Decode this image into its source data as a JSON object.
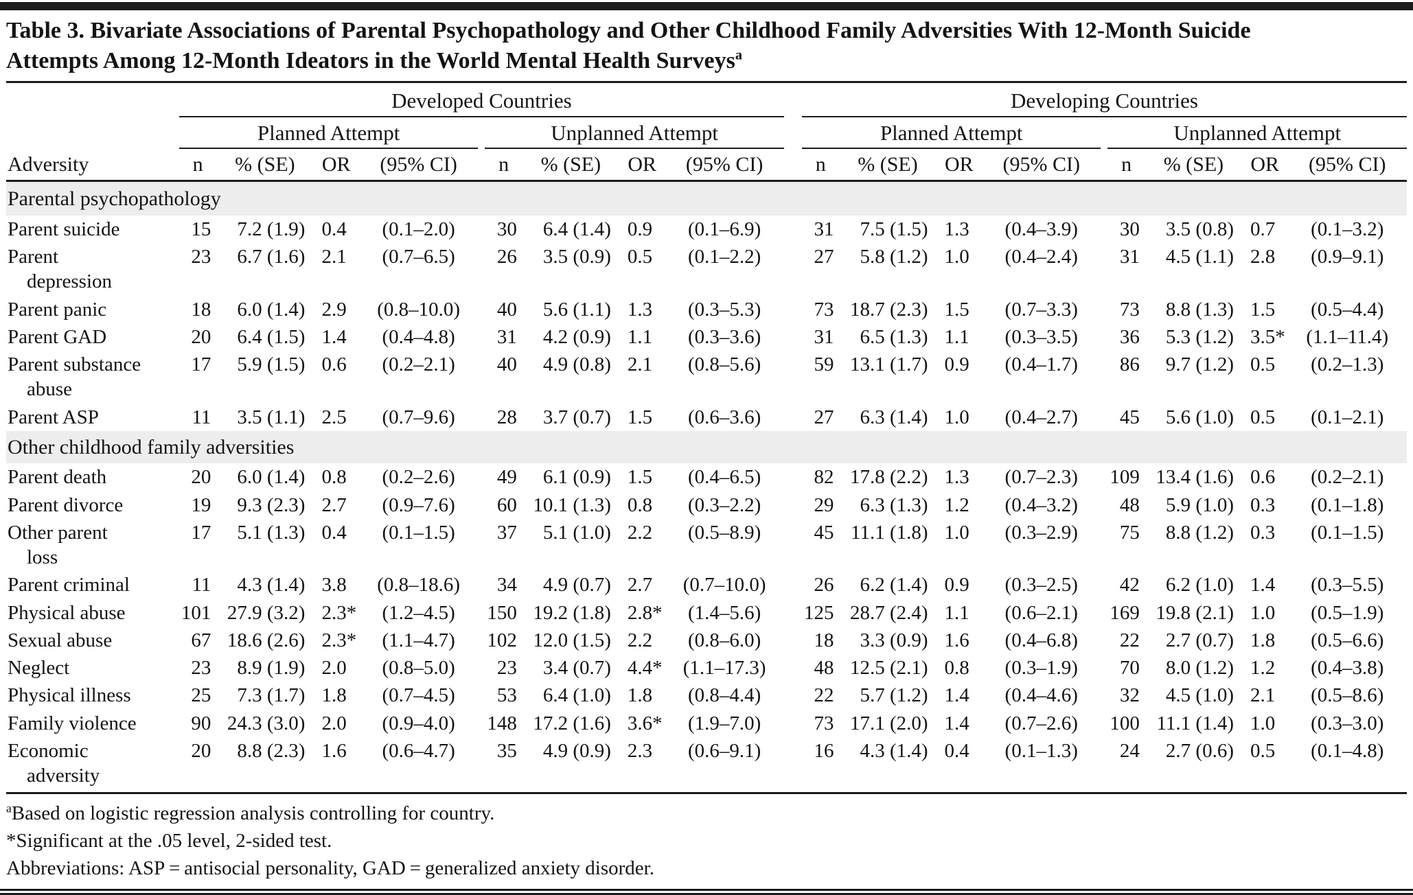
{
  "title": {
    "line1": "Table 3. Bivariate Associations of Parental Psychopathology and Other Childhood Family Adversities With 12-Month Suicide",
    "line2": "Attempts Among 12-Month Ideators in the World Mental Health Surveys",
    "footnote_marker": "a"
  },
  "header": {
    "developed": "Developed Countries",
    "developing": "Developing Countries",
    "planned": "Planned Attempt",
    "unplanned": "Unplanned Attempt"
  },
  "columns": {
    "adversity": "Adversity",
    "n": "n",
    "pct_se": "% (SE)",
    "or": "OR",
    "ci": "(95% CI)"
  },
  "sections": [
    {
      "label": "Parental psychopathology",
      "rows": [
        {
          "label_lines": [
            "Parent suicide"
          ],
          "groups": [
            [
              "15",
              "7.2 (1.9)",
              "0.4",
              "(0.1–2.0)"
            ],
            [
              "30",
              "6.4 (1.4)",
              "0.9",
              "(0.1–6.9)"
            ],
            [
              "31",
              "7.5 (1.5)",
              "1.3",
              "(0.4–3.9)"
            ],
            [
              "30",
              "3.5 (0.8)",
              "0.7",
              "(0.1–3.2)"
            ]
          ]
        },
        {
          "label_lines": [
            "Parent",
            "depression"
          ],
          "groups": [
            [
              "23",
              "6.7 (1.6)",
              "2.1",
              "(0.7–6.5)"
            ],
            [
              "26",
              "3.5 (0.9)",
              "0.5",
              "(0.1–2.2)"
            ],
            [
              "27",
              "5.8 (1.2)",
              "1.0",
              "(0.4–2.4)"
            ],
            [
              "31",
              "4.5 (1.1)",
              "2.8",
              "(0.9–9.1)"
            ]
          ]
        },
        {
          "label_lines": [
            "Parent panic"
          ],
          "groups": [
            [
              "18",
              "6.0 (1.4)",
              "2.9",
              "(0.8–10.0)"
            ],
            [
              "40",
              "5.6 (1.1)",
              "1.3",
              "(0.3–5.3)"
            ],
            [
              "73",
              "18.7 (2.3)",
              "1.5",
              "(0.7–3.3)"
            ],
            [
              "73",
              "8.8 (1.3)",
              "1.5",
              "(0.5–4.4)"
            ]
          ]
        },
        {
          "label_lines": [
            "Parent GAD"
          ],
          "groups": [
            [
              "20",
              "6.4 (1.5)",
              "1.4",
              "(0.4–4.8)"
            ],
            [
              "31",
              "4.2 (0.9)",
              "1.1",
              "(0.3–3.6)"
            ],
            [
              "31",
              "6.5 (1.3)",
              "1.1",
              "(0.3–3.5)"
            ],
            [
              "36",
              "5.3 (1.2)",
              "3.5*",
              "(1.1–11.4)"
            ]
          ]
        },
        {
          "label_lines": [
            "Parent substance",
            "abuse"
          ],
          "groups": [
            [
              "17",
              "5.9 (1.5)",
              "0.6",
              "(0.2–2.1)"
            ],
            [
              "40",
              "4.9 (0.8)",
              "2.1",
              "(0.8–5.6)"
            ],
            [
              "59",
              "13.1 (1.7)",
              "0.9",
              "(0.4–1.7)"
            ],
            [
              "86",
              "9.7 (1.2)",
              "0.5",
              "(0.2–1.3)"
            ]
          ]
        },
        {
          "label_lines": [
            "Parent ASP"
          ],
          "groups": [
            [
              "11",
              "3.5 (1.1)",
              "2.5",
              "(0.7–9.6)"
            ],
            [
              "28",
              "3.7 (0.7)",
              "1.5",
              "(0.6–3.6)"
            ],
            [
              "27",
              "6.3 (1.4)",
              "1.0",
              "(0.4–2.7)"
            ],
            [
              "45",
              "5.6 (1.0)",
              "0.5",
              "(0.1–2.1)"
            ]
          ]
        }
      ]
    },
    {
      "label": "Other childhood family adversities",
      "rows": [
        {
          "label_lines": [
            "Parent death"
          ],
          "groups": [
            [
              "20",
              "6.0 (1.4)",
              "0.8",
              "(0.2–2.6)"
            ],
            [
              "49",
              "6.1 (0.9)",
              "1.5",
              "(0.4–6.5)"
            ],
            [
              "82",
              "17.8 (2.2)",
              "1.3",
              "(0.7–2.3)"
            ],
            [
              "109",
              "13.4 (1.6)",
              "0.6",
              "(0.2–2.1)"
            ]
          ]
        },
        {
          "label_lines": [
            "Parent divorce"
          ],
          "groups": [
            [
              "19",
              "9.3 (2.3)",
              "2.7",
              "(0.9–7.6)"
            ],
            [
              "60",
              "10.1 (1.3)",
              "0.8",
              "(0.3–2.2)"
            ],
            [
              "29",
              "6.3 (1.3)",
              "1.2",
              "(0.4–3.2)"
            ],
            [
              "48",
              "5.9 (1.0)",
              "0.3",
              "(0.1–1.8)"
            ]
          ]
        },
        {
          "label_lines": [
            "Other parent",
            "loss"
          ],
          "groups": [
            [
              "17",
              "5.1 (1.3)",
              "0.4",
              "(0.1–1.5)"
            ],
            [
              "37",
              "5.1 (1.0)",
              "2.2",
              "(0.5–8.9)"
            ],
            [
              "45",
              "11.1 (1.8)",
              "1.0",
              "(0.3–2.9)"
            ],
            [
              "75",
              "8.8 (1.2)",
              "0.3",
              "(0.1–1.5)"
            ]
          ]
        },
        {
          "label_lines": [
            "Parent criminal"
          ],
          "groups": [
            [
              "11",
              "4.3 (1.4)",
              "3.8",
              "(0.8–18.6)"
            ],
            [
              "34",
              "4.9 (0.7)",
              "2.7",
              "(0.7–10.0)"
            ],
            [
              "26",
              "6.2 (1.4)",
              "0.9",
              "(0.3–2.5)"
            ],
            [
              "42",
              "6.2 (1.0)",
              "1.4",
              "(0.3–5.5)"
            ]
          ]
        },
        {
          "label_lines": [
            "Physical abuse"
          ],
          "groups": [
            [
              "101",
              "27.9 (3.2)",
              "2.3*",
              "(1.2–4.5)"
            ],
            [
              "150",
              "19.2 (1.8)",
              "2.8*",
              "(1.4–5.6)"
            ],
            [
              "125",
              "28.7 (2.4)",
              "1.1",
              "(0.6–2.1)"
            ],
            [
              "169",
              "19.8 (2.1)",
              "1.0",
              "(0.5–1.9)"
            ]
          ]
        },
        {
          "label_lines": [
            "Sexual abuse"
          ],
          "groups": [
            [
              "67",
              "18.6 (2.6)",
              "2.3*",
              "(1.1–4.7)"
            ],
            [
              "102",
              "12.0 (1.5)",
              "2.2",
              "(0.8–6.0)"
            ],
            [
              "18",
              "3.3 (0.9)",
              "1.6",
              "(0.4–6.8)"
            ],
            [
              "22",
              "2.7 (0.7)",
              "1.8",
              "(0.5–6.6)"
            ]
          ]
        },
        {
          "label_lines": [
            "Neglect"
          ],
          "groups": [
            [
              "23",
              "8.9 (1.9)",
              "2.0",
              "(0.8–5.0)"
            ],
            [
              "23",
              "3.4 (0.7)",
              "4.4*",
              "(1.1–17.3)"
            ],
            [
              "48",
              "12.5 (2.1)",
              "0.8",
              "(0.3–1.9)"
            ],
            [
              "70",
              "8.0 (1.2)",
              "1.2",
              "(0.4–3.8)"
            ]
          ]
        },
        {
          "label_lines": [
            "Physical illness"
          ],
          "groups": [
            [
              "25",
              "7.3 (1.7)",
              "1.8",
              "(0.7–4.5)"
            ],
            [
              "53",
              "6.4 (1.0)",
              "1.8",
              "(0.8–4.4)"
            ],
            [
              "22",
              "5.7 (1.2)",
              "1.4",
              "(0.4–4.6)"
            ],
            [
              "32",
              "4.5 (1.0)",
              "2.1",
              "(0.5–8.6)"
            ]
          ]
        },
        {
          "label_lines": [
            "Family violence"
          ],
          "groups": [
            [
              "90",
              "24.3 (3.0)",
              "2.0",
              "(0.9–4.0)"
            ],
            [
              "148",
              "17.2 (1.6)",
              "3.6*",
              "(1.9–7.0)"
            ],
            [
              "73",
              "17.1 (2.0)",
              "1.4",
              "(0.7–2.6)"
            ],
            [
              "100",
              "11.1 (1.4)",
              "1.0",
              "(0.3–3.0)"
            ]
          ]
        },
        {
          "label_lines": [
            "Economic",
            "adversity"
          ],
          "groups": [
            [
              "20",
              "8.8 (2.3)",
              "1.6",
              "(0.6–4.7)"
            ],
            [
              "35",
              "4.9 (0.9)",
              "2.3",
              "(0.6–9.1)"
            ],
            [
              "16",
              "4.3 (1.4)",
              "0.4",
              "(0.1–1.3)"
            ],
            [
              "24",
              "2.7 (0.6)",
              "0.5",
              "(0.1–4.8)"
            ]
          ]
        }
      ]
    }
  ],
  "footnotes": {
    "a_marker": "a",
    "a_text": "Based on logistic regression analysis controlling for country.",
    "significance": "*Significant at the .05 level, 2-sided test.",
    "abbreviations": "Abbreviations: ASP = antisocial personality, GAD = generalized anxiety disorder."
  }
}
